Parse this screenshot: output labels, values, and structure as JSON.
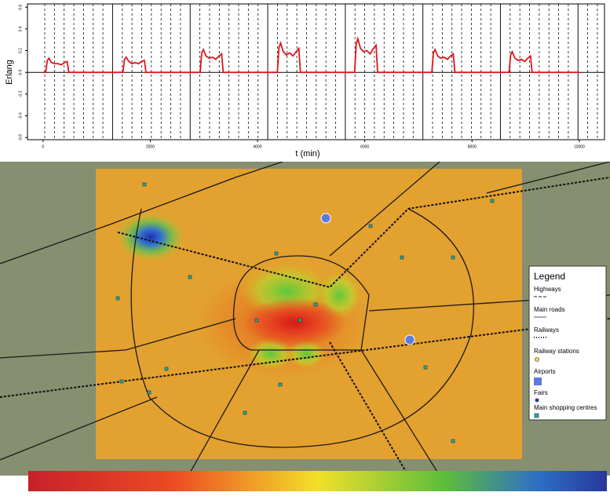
{
  "chart_data": {
    "type": "line",
    "y_label": "Erlang",
    "x_label": "t (min)",
    "xlim": [
      -290,
      10470
    ],
    "ylim": [
      -0.62,
      0.63
    ],
    "xticks": [
      0,
      2000,
      4000,
      6000,
      8000,
      10000
    ],
    "yticks": [
      -0.6,
      -0.4,
      -0.2,
      {
        "value": 0,
        "label": "0.0"
      },
      0.2,
      0.4,
      0.6
    ],
    "series": [
      {
        "color": "#e0161b",
        "x": [
          0,
          50,
          80,
          110,
          160,
          220,
          280,
          340,
          400,
          450,
          480,
          1490,
          1520,
          1550,
          1600,
          1660,
          1720,
          1780,
          1840,
          1890,
          1920,
          2930,
          2960,
          2990,
          3040,
          3100,
          3160,
          3220,
          3280,
          3330,
          3360,
          4370,
          4400,
          4430,
          4480,
          4540,
          4600,
          4660,
          4720,
          4770,
          4800,
          5810,
          5840,
          5870,
          5920,
          5980,
          6040,
          6100,
          6160,
          6210,
          6240,
          7250,
          7280,
          7310,
          7360,
          7420,
          7480,
          7540,
          7600,
          7650,
          7680,
          8690,
          8720,
          8750,
          8800,
          8860,
          8920,
          8980,
          9040,
          9090,
          9120,
          10000
        ],
        "values": [
          0,
          0,
          0.11,
          0.13,
          0.09,
          0.08,
          0.08,
          0.07,
          0.09,
          0.1,
          0,
          0,
          0.12,
          0.14,
          0.1,
          0.08,
          0.09,
          0.08,
          0.1,
          0.11,
          0,
          0,
          0.18,
          0.21,
          0.15,
          0.13,
          0.14,
          0.12,
          0.15,
          0.17,
          0,
          0,
          0.23,
          0.27,
          0.19,
          0.16,
          0.18,
          0.15,
          0.19,
          0.22,
          0,
          0,
          0.26,
          0.31,
          0.22,
          0.19,
          0.2,
          0.17,
          0.22,
          0.25,
          0,
          0,
          0.18,
          0.21,
          0.15,
          0.13,
          0.14,
          0.12,
          0.15,
          0.17,
          0,
          0,
          0.16,
          0.19,
          0.13,
          0.11,
          0.12,
          0.1,
          0.13,
          0.15,
          0,
          0
        ]
      }
    ]
  },
  "map": {
    "legend": {
      "title": "Legend",
      "items": [
        "Highways",
        "Main roads",
        "Railways",
        "Railway stations",
        "Airports",
        "Fairs",
        "Main shopping centres"
      ]
    }
  }
}
